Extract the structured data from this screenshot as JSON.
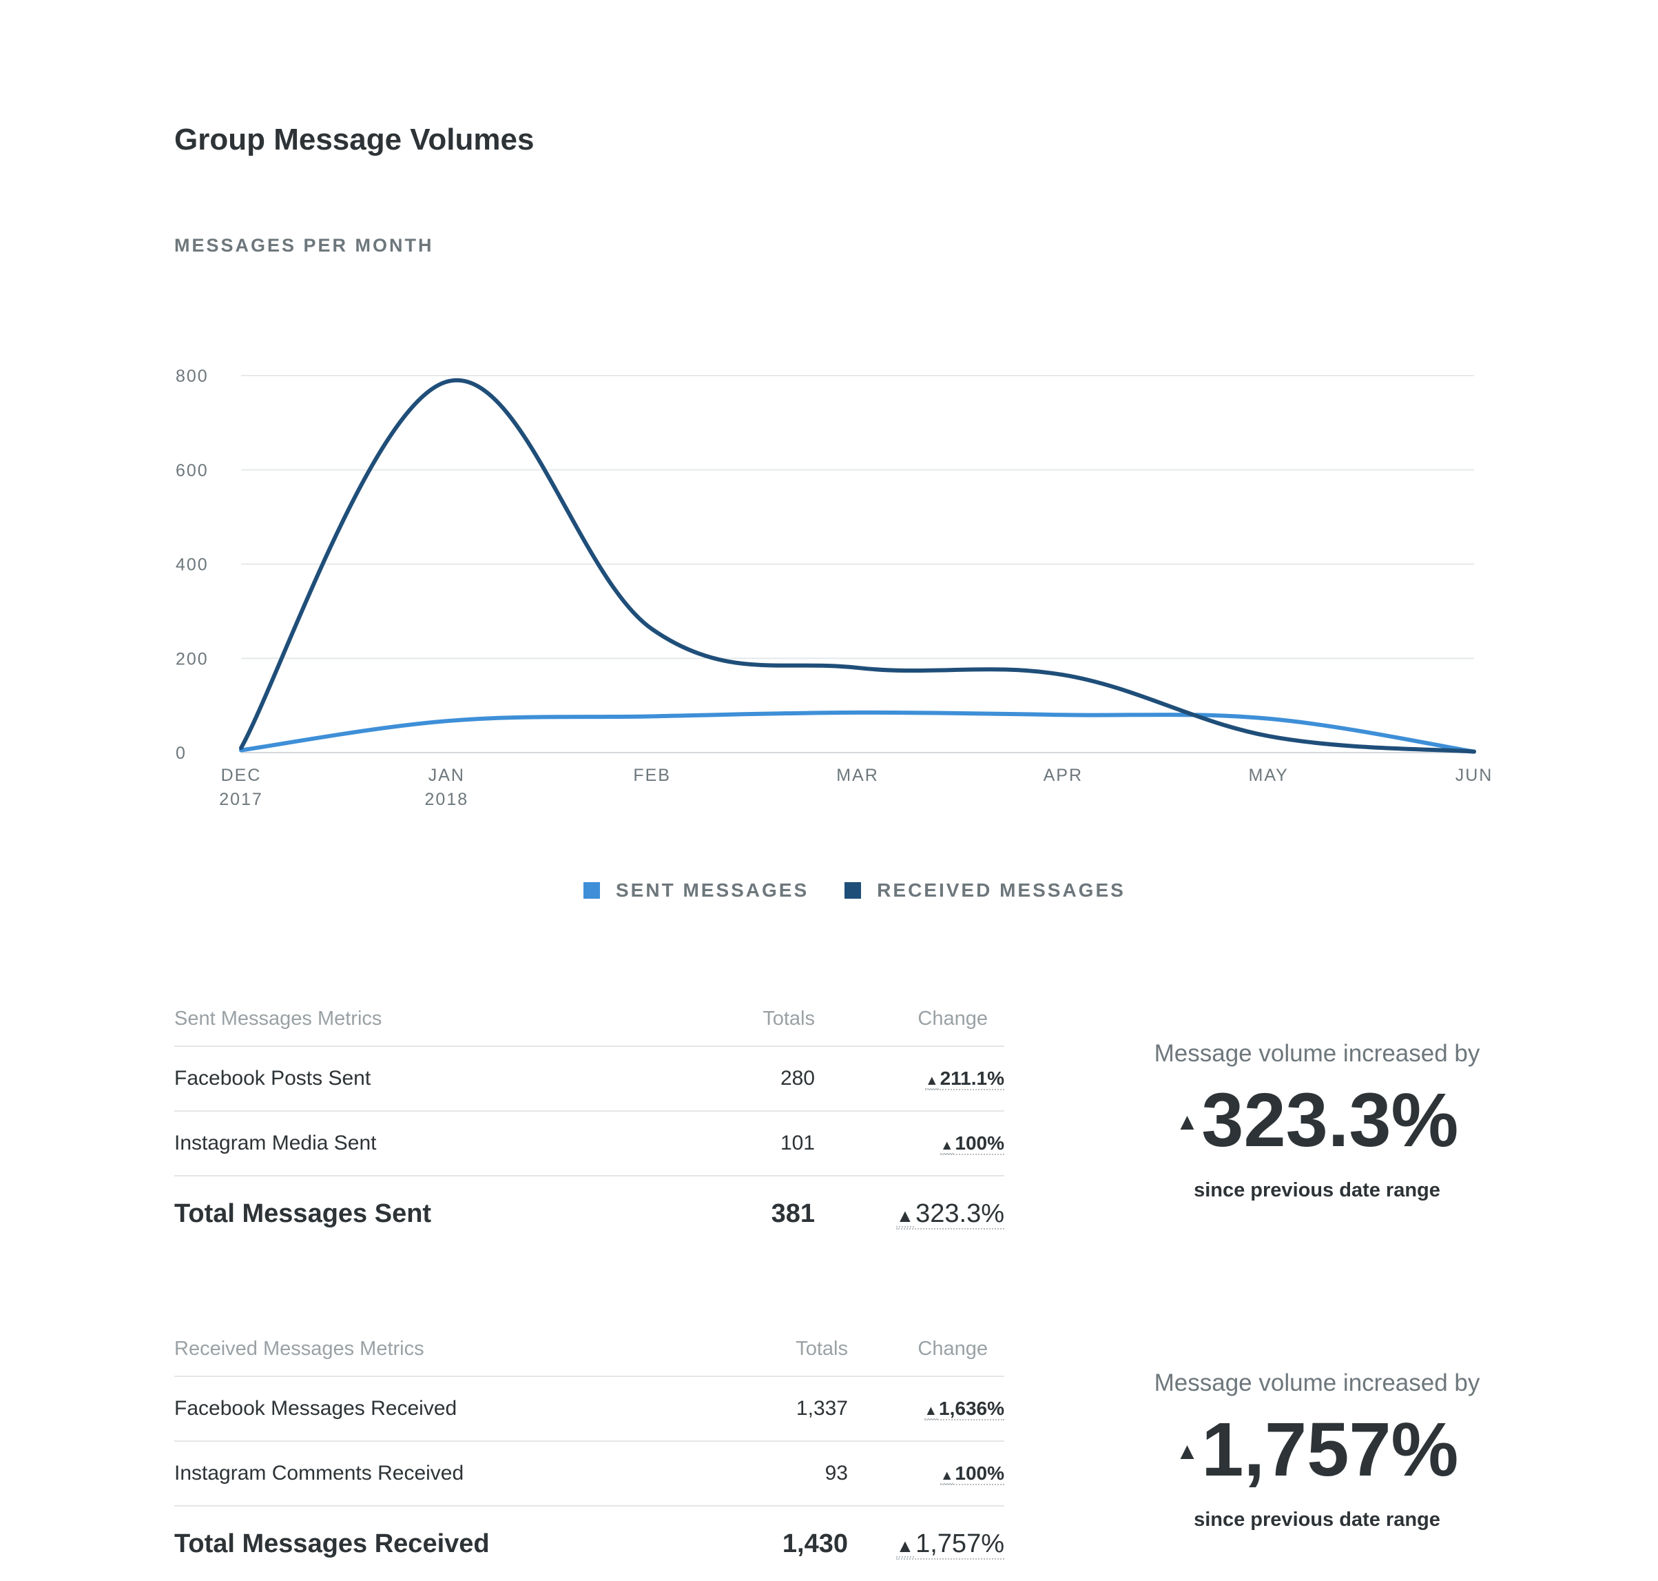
{
  "header": {
    "title": "Group Message Volumes",
    "subtitle": "MESSAGES PER MONTH"
  },
  "chart_data": {
    "type": "line",
    "curve": "smooth",
    "x_ticks": [
      {
        "line1": "DEC",
        "line2": "2017"
      },
      {
        "line1": "JAN",
        "line2": "2018"
      },
      {
        "line1": "FEB",
        "line2": ""
      },
      {
        "line1": "MAR",
        "line2": ""
      },
      {
        "line1": "APR",
        "line2": ""
      },
      {
        "line1": "MAY",
        "line2": ""
      },
      {
        "line1": "JUN",
        "line2": ""
      }
    ],
    "y_ticks": [
      "0",
      "200",
      "400",
      "600",
      "800"
    ],
    "ylim": [
      0,
      800
    ],
    "grid": true,
    "legend_position": "bottom-center",
    "series": [
      {
        "name": "SENT MESSAGES",
        "color": "#3e8fd7",
        "values": [
          5,
          67,
          77,
          85,
          80,
          72,
          2
        ]
      },
      {
        "name": "RECEIVED MESSAGES",
        "color": "#1f4e79",
        "values": [
          10,
          787,
          262,
          180,
          165,
          35,
          2
        ]
      }
    ]
  },
  "sent_table": {
    "headers": [
      "Sent Messages Metrics",
      "Totals",
      "Change"
    ],
    "rows": [
      {
        "label": "Facebook Posts Sent",
        "total": "280",
        "change": "211.1%"
      },
      {
        "label": "Instagram Media Sent",
        "total": "101",
        "change": "100%"
      }
    ],
    "total_row": {
      "label": "Total Messages Sent",
      "total": "381",
      "change": "323.3%"
    }
  },
  "received_table": {
    "headers": [
      "Received Messages Metrics",
      "Totals",
      "Change"
    ],
    "rows": [
      {
        "label": "Facebook Messages Received",
        "total": "1,337",
        "change": "1,636%"
      },
      {
        "label": "Instagram Comments Received",
        "total": "93",
        "change": "100%"
      }
    ],
    "total_row": {
      "label": "Total Messages Received",
      "total": "1,430",
      "change": "1,757%"
    }
  },
  "sent_summary": {
    "lead": "Message volume increased by",
    "value": "323.3%",
    "foot": "since previous date range"
  },
  "received_summary": {
    "lead": "Message volume increased by",
    "value": "1,757%",
    "foot": "since previous date range"
  },
  "icons": {
    "up": "▲"
  }
}
